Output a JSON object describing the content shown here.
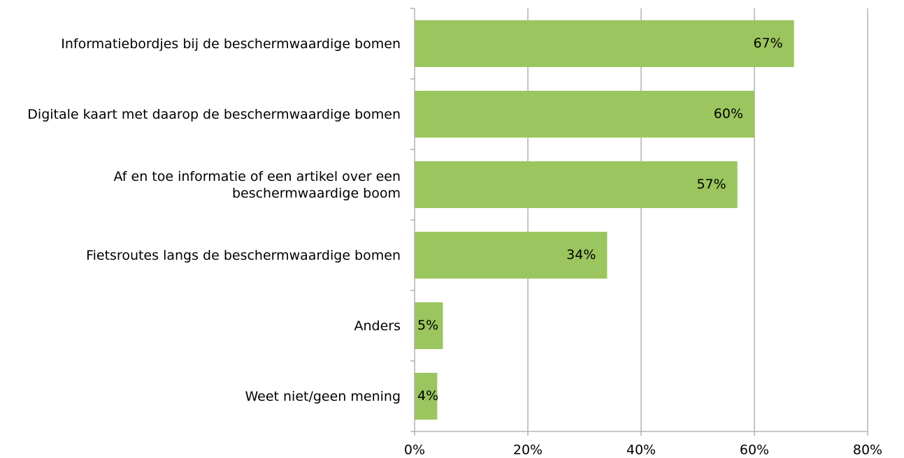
{
  "chart_data": {
    "type": "bar",
    "orientation": "horizontal",
    "categories": [
      "Informatiebordjes bij de beschermwaardige bomen",
      "Digitale kaart met daarop de beschermwaardige bomen",
      "Af en toe informatie of een artikel over een beschermwaardige boom",
      "Fietsroutes langs de beschermwaardige bomen",
      "Anders",
      "Weet niet/geen mening"
    ],
    "values": [
      67,
      60,
      57,
      34,
      5,
      4
    ],
    "value_labels": [
      "67%",
      "60%",
      "57%",
      "34%",
      "5%",
      "4%"
    ],
    "color": "#9bc55e",
    "xlim": [
      0,
      80
    ],
    "xticks": [
      {
        "value": 0,
        "label": "0%"
      },
      {
        "value": 20,
        "label": "20%"
      },
      {
        "value": 40,
        "label": "40%"
      },
      {
        "value": 60,
        "label": "60%"
      },
      {
        "value": 80,
        "label": "80%"
      }
    ],
    "grid": true
  }
}
